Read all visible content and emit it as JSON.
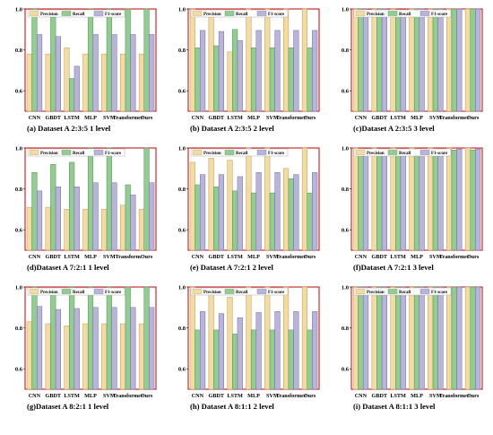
{
  "legend_labels": [
    "Precision",
    "Recall",
    "F1-score"
  ],
  "colors": {
    "precision_fill": "#F3DBA4",
    "precision_stroke": "#B89A55",
    "recall_fill": "#93CC93",
    "recall_stroke": "#4E8E4E",
    "f1_fill": "#B9B5D9",
    "f1_stroke": "#6F6AA3",
    "border": "#C00000"
  },
  "panels": [
    {
      "caption": "(a) Dataset A 2:3:5 1 level",
      "chart_data": {
        "type": "bar",
        "categories": [
          "CNN",
          "GBDT",
          "LSTM",
          "MLP",
          "SVM",
          "Transformer",
          "Ours"
        ],
        "series": [
          {
            "name": "Precision",
            "values": [
              0.78,
              0.78,
              0.81,
              0.78,
              0.78,
              0.78,
              0.78
            ]
          },
          {
            "name": "Recall",
            "values": [
              1.0,
              0.96,
              0.66,
              1.0,
              1.0,
              1.0,
              1.0
            ]
          },
          {
            "name": "F1-score",
            "values": [
              0.875,
              0.865,
              0.72,
              0.875,
              0.875,
              0.875,
              0.875
            ]
          }
        ],
        "yticks": [
          "0.6",
          "0.8",
          "1.0"
        ],
        "ylim": [
          0.5,
          1.0
        ]
      }
    },
    {
      "caption": "(b) Dataset A 2:3:5 2 level",
      "chart_data": {
        "type": "bar",
        "categories": [
          "CNN",
          "GBDT",
          "LSTM",
          "MLP",
          "SVM",
          "Transformer",
          "Ours"
        ],
        "series": [
          {
            "name": "Precision",
            "values": [
              1.0,
              0.97,
              0.79,
              1.0,
              1.0,
              1.0,
              1.0
            ]
          },
          {
            "name": "Recall",
            "values": [
              0.81,
              0.82,
              0.9,
              0.81,
              0.81,
              0.81,
              0.81
            ]
          },
          {
            "name": "F1-score",
            "values": [
              0.895,
              0.89,
              0.845,
              0.895,
              0.895,
              0.895,
              0.895
            ]
          }
        ],
        "yticks": [
          "0.6",
          "0.8",
          "1.0"
        ],
        "ylim": [
          0.5,
          1.0
        ]
      }
    },
    {
      "caption": "(c)Dataset A 2:3:5 3 level",
      "chart_data": {
        "type": "bar",
        "categories": [
          "CNN",
          "GBDT",
          "LSTM",
          "MLP",
          "SVM",
          "Transformer",
          "Ours"
        ],
        "series": [
          {
            "name": "Precision",
            "values": [
              1.0,
              1.0,
              1.0,
              1.0,
              1.0,
              1.0,
              1.0
            ]
          },
          {
            "name": "Recall",
            "values": [
              1.0,
              1.0,
              0.99,
              1.0,
              1.0,
              1.0,
              1.0
            ]
          },
          {
            "name": "F1-score",
            "values": [
              1.0,
              1.0,
              0.995,
              1.0,
              1.0,
              1.0,
              1.0
            ]
          }
        ],
        "yticks": [
          "0.6",
          "0.8",
          "1.0"
        ],
        "ylim": [
          0.5,
          1.0
        ]
      }
    },
    {
      "caption": "(d)Dataset A 7:2:1 1 level",
      "chart_data": {
        "type": "bar",
        "categories": [
          "CNN",
          "GBDT",
          "LSTM",
          "MLP",
          "SVM",
          "Transform",
          "Ours"
        ],
        "series": [
          {
            "name": "Precision",
            "values": [
              0.71,
              0.71,
              0.7,
              0.7,
              0.7,
              0.72,
              0.7
            ]
          },
          {
            "name": "Recall",
            "values": [
              0.88,
              0.92,
              0.93,
              1.0,
              1.0,
              0.82,
              1.0
            ]
          },
          {
            "name": "F1-score",
            "values": [
              0.79,
              0.81,
              0.81,
              0.83,
              0.83,
              0.77,
              0.83
            ]
          }
        ],
        "yticks": [
          "0.6",
          "0.8",
          "1.0"
        ],
        "ylim": [
          0.5,
          1.0
        ]
      }
    },
    {
      "caption": "(e) Dataset A 7:2:1 2 level",
      "chart_data": {
        "type": "bar",
        "categories": [
          "CNN",
          "GBDT",
          "LSTM",
          "MLP",
          "SVM",
          "Transformer",
          "Ours"
        ],
        "series": [
          {
            "name": "Precision",
            "values": [
              0.93,
              0.95,
              0.94,
              1.0,
              1.0,
              0.9,
              1.0
            ]
          },
          {
            "name": "Recall",
            "values": [
              0.82,
              0.81,
              0.79,
              0.78,
              0.78,
              0.85,
              0.78
            ]
          },
          {
            "name": "F1-score",
            "values": [
              0.87,
              0.87,
              0.86,
              0.88,
              0.88,
              0.87,
              0.88
            ]
          }
        ],
        "yticks": [
          "0.6",
          "0.8",
          "1.0"
        ],
        "ylim": [
          0.5,
          1.0
        ]
      }
    },
    {
      "caption": "(f)Dataset A 7:2:1 3 level",
      "chart_data": {
        "type": "bar",
        "categories": [
          "CNN",
          "GBDT",
          "LSTM",
          "MLP",
          "SVM",
          "Transformer",
          "Ours"
        ],
        "series": [
          {
            "name": "Precision",
            "values": [
              1.0,
              1.0,
              1.0,
              1.0,
              1.0,
              1.0,
              1.0
            ]
          },
          {
            "name": "Recall",
            "values": [
              0.99,
              0.99,
              0.99,
              0.99,
              0.99,
              0.99,
              0.99
            ]
          },
          {
            "name": "F1-score",
            "values": [
              0.995,
              0.995,
              0.995,
              0.995,
              0.995,
              0.995,
              0.995
            ]
          }
        ],
        "yticks": [
          "0.6",
          "0.8",
          "1.0"
        ],
        "ylim": [
          0.5,
          1.0
        ]
      }
    },
    {
      "caption": "(g)Dataset A 8:2:1 1 level",
      "chart_data": {
        "type": "bar",
        "categories": [
          "CNN",
          "GBDT",
          "LSTM",
          "MLP",
          "SVM",
          "Transformer",
          "Ours"
        ],
        "series": [
          {
            "name": "Precision",
            "values": [
              0.83,
              0.82,
              0.81,
              0.82,
              0.82,
              0.82,
              0.82
            ]
          },
          {
            "name": "Recall",
            "values": [
              1.0,
              0.97,
              1.0,
              1.0,
              1.0,
              1.0,
              1.0
            ]
          },
          {
            "name": "F1-score",
            "values": [
              0.905,
              0.89,
              0.895,
              0.9,
              0.9,
              0.9,
              0.9
            ]
          }
        ],
        "yticks": [
          "0.6",
          "0.8",
          "1.0"
        ],
        "ylim": [
          0.5,
          1.0
        ]
      }
    },
    {
      "caption": "(h) Dataset A 8:1:1 2 level",
      "chart_data": {
        "type": "bar",
        "categories": [
          "CNN",
          "GBDT",
          "LSTM",
          "MLP",
          "SVM",
          "Transformer",
          "Ours"
        ],
        "series": [
          {
            "name": "Precision",
            "values": [
              1.0,
              0.97,
              0.95,
              1.0,
              1.0,
              1.0,
              1.0
            ]
          },
          {
            "name": "Recall",
            "values": [
              0.79,
              0.79,
              0.77,
              0.79,
              0.79,
              0.79,
              0.79
            ]
          },
          {
            "name": "F1-score",
            "values": [
              0.88,
              0.87,
              0.85,
              0.875,
              0.88,
              0.88,
              0.88
            ]
          }
        ],
        "yticks": [
          "0.6",
          "0.8",
          "1.0"
        ],
        "ylim": [
          0.5,
          1.0
        ]
      }
    },
    {
      "caption": "(i) Dataset A 8:1:1 3 level",
      "chart_data": {
        "type": "bar",
        "categories": [
          "CNN",
          "GBDT",
          "LSTM",
          "MLP",
          "SVM",
          "Transformer",
          "Ours"
        ],
        "series": [
          {
            "name": "Precision",
            "values": [
              1.0,
              1.0,
              1.0,
              1.0,
              1.0,
              1.0,
              1.0
            ]
          },
          {
            "name": "Recall",
            "values": [
              1.0,
              1.0,
              1.0,
              1.0,
              1.0,
              1.0,
              1.0
            ]
          },
          {
            "name": "F1-score",
            "values": [
              1.0,
              1.0,
              1.0,
              1.0,
              1.0,
              1.0,
              1.0
            ]
          }
        ],
        "yticks": [
          "0.6",
          "0.8",
          "1.0"
        ],
        "ylim": [
          0.5,
          1.0
        ]
      }
    }
  ]
}
